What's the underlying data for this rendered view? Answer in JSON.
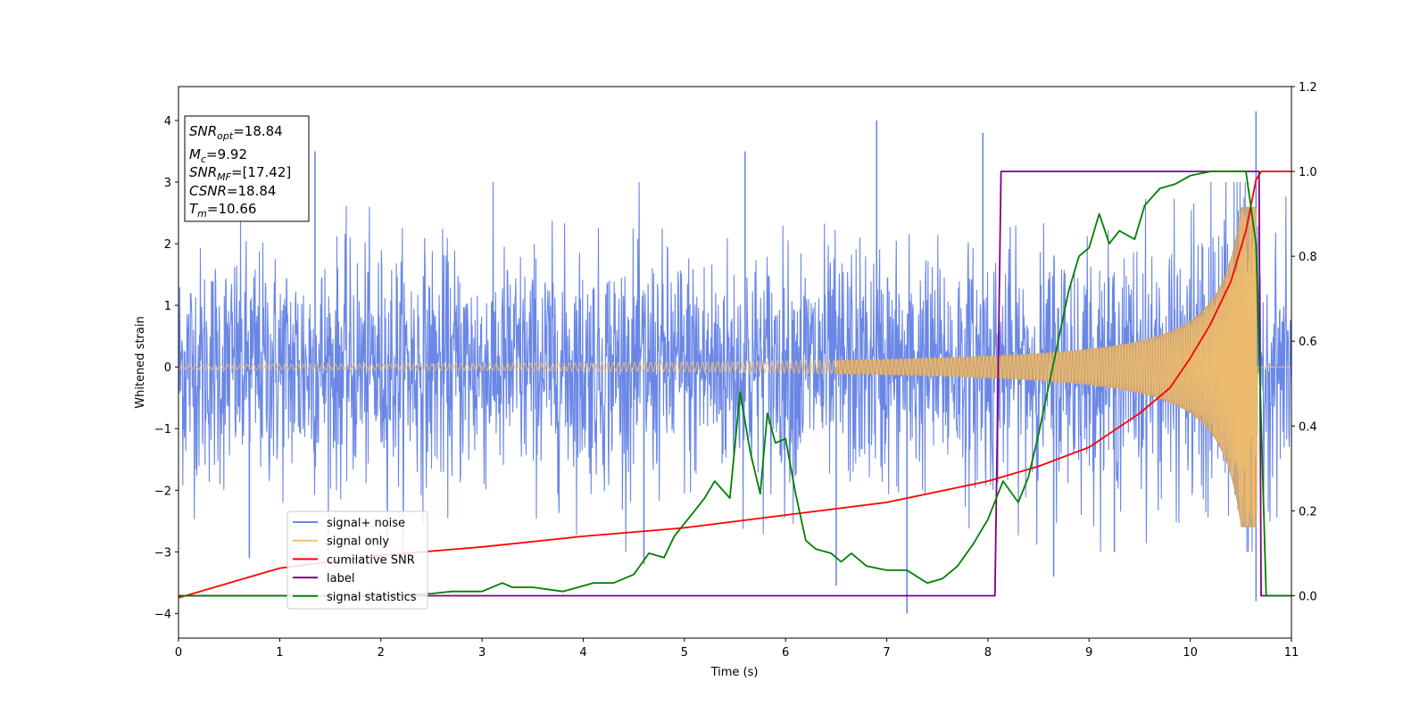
{
  "chart_data": {
    "type": "line",
    "xlabel": "Time (s)",
    "ylabel": "Whitened strain",
    "xlim": [
      0,
      11
    ],
    "ylim": [
      -4.4,
      4.55
    ],
    "y2lim": [
      -0.1,
      1.2
    ],
    "xticks": [
      0,
      1,
      2,
      3,
      4,
      5,
      6,
      7,
      8,
      9,
      10,
      11
    ],
    "yticks": [
      -4,
      -3,
      -2,
      -1,
      0,
      1,
      2,
      3,
      4
    ],
    "y2ticks": [
      0.0,
      0.2,
      0.4,
      0.6,
      0.8,
      1.0,
      1.2
    ],
    "grid": false,
    "legend_position": "lower-left",
    "annotation": {
      "lines": [
        {
          "base": "SNR",
          "sub": "opt",
          "value": "=18.84"
        },
        {
          "base": "M",
          "sub": "c",
          "value": "=9.92"
        },
        {
          "base": "SNR",
          "sub": "MF",
          "value": "=[17.42]"
        },
        {
          "base": "CSNR",
          "sub": "",
          "value": "=18.84"
        },
        {
          "base": "T",
          "sub": "m",
          "value": "=10.66"
        }
      ]
    },
    "colors": {
      "noise": "#6a87e6",
      "signal": "#f5c06a",
      "csnr": "#ff0000",
      "label": "#800080",
      "stat": "#008000"
    },
    "series": [
      {
        "name": "signal+ noise",
        "axis": "left",
        "description_of_data": "white Gaussian noise plus chirp, roughly ±2.5 with spikes up to 4.15",
        "noise_sigma": 1.0,
        "spikes": [
          [
            1.35,
            3.5
          ],
          [
            5.6,
            3.5
          ],
          [
            6.9,
            4.0
          ],
          [
            7.95,
            3.8
          ],
          [
            10.65,
            4.15
          ],
          [
            7.2,
            -4.0
          ],
          [
            10.65,
            -3.8
          ],
          [
            0.7,
            -3.1
          ],
          [
            6.5,
            -3.55
          ],
          [
            8.65,
            -3.4
          ],
          [
            4.6,
            -3.2
          ],
          [
            9.25,
            -3.0
          ]
        ]
      },
      {
        "name": "signal only",
        "axis": "left",
        "chirp_tc": 10.66,
        "amp_start": 0.04,
        "amp_end": 2.6
      },
      {
        "name": "cumilative SNR",
        "axis": "right",
        "x": [
          0,
          1,
          2,
          3,
          4,
          5,
          6,
          6.5,
          7,
          7.5,
          8,
          8.5,
          9,
          9.5,
          9.8,
          10,
          10.2,
          10.4,
          10.55,
          10.65,
          10.7,
          11
        ],
        "y": [
          -0.005,
          0.065,
          0.095,
          0.115,
          0.14,
          0.16,
          0.19,
          0.205,
          0.22,
          0.245,
          0.27,
          0.305,
          0.35,
          0.43,
          0.49,
          0.56,
          0.64,
          0.74,
          0.86,
          0.98,
          1.0,
          1.0
        ]
      },
      {
        "name": "label",
        "axis": "right",
        "x": [
          0,
          8.07,
          8.13,
          10.68,
          10.7,
          11
        ],
        "y": [
          0,
          0,
          1,
          1,
          0,
          0
        ]
      },
      {
        "name": "signal statistics",
        "axis": "right",
        "x": [
          0,
          2.0,
          2.5,
          2.7,
          3.0,
          3.2,
          3.3,
          3.5,
          3.8,
          4.1,
          4.3,
          4.5,
          4.65,
          4.8,
          4.9,
          5.1,
          5.2,
          5.3,
          5.45,
          5.55,
          5.65,
          5.75,
          5.82,
          5.9,
          6.0,
          6.1,
          6.2,
          6.3,
          6.45,
          6.55,
          6.65,
          6.8,
          7.0,
          7.2,
          7.4,
          7.55,
          7.7,
          7.85,
          8.0,
          8.15,
          8.3,
          8.4,
          8.5,
          8.65,
          8.8,
          8.9,
          9.0,
          9.1,
          9.2,
          9.3,
          9.45,
          9.55,
          9.7,
          9.85,
          10.0,
          10.2,
          10.55,
          10.65,
          10.75,
          11
        ],
        "y": [
          0,
          0,
          0.005,
          0.01,
          0.01,
          0.03,
          0.02,
          0.02,
          0.01,
          0.03,
          0.03,
          0.05,
          0.1,
          0.09,
          0.14,
          0.2,
          0.23,
          0.27,
          0.23,
          0.48,
          0.34,
          0.24,
          0.43,
          0.36,
          0.37,
          0.24,
          0.13,
          0.11,
          0.1,
          0.08,
          0.1,
          0.07,
          0.06,
          0.06,
          0.03,
          0.04,
          0.07,
          0.12,
          0.18,
          0.27,
          0.22,
          0.28,
          0.38,
          0.55,
          0.72,
          0.8,
          0.82,
          0.9,
          0.83,
          0.86,
          0.84,
          0.92,
          0.96,
          0.97,
          0.99,
          1.0,
          1.0,
          0.83,
          0.0,
          0.0
        ]
      }
    ]
  }
}
